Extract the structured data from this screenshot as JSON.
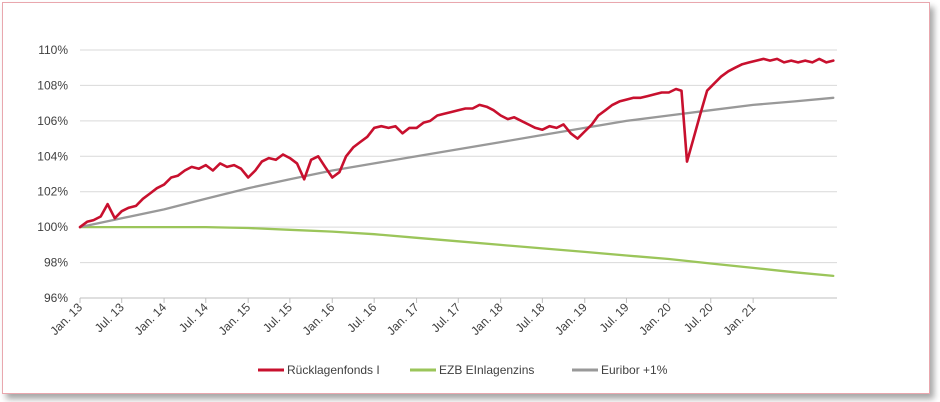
{
  "chart_data": {
    "type": "line",
    "y_unit": "%",
    "ylim": [
      96,
      110
    ],
    "y_ticks": [
      "110%",
      "108%",
      "106%",
      "104%",
      "102%",
      "100%",
      "98%",
      "96%"
    ],
    "x_range": [
      "2013-01-01",
      "2021-12-31"
    ],
    "x_ticks": [
      {
        "date": "2013-01-01",
        "label": "Jan. 13"
      },
      {
        "date": "2013-07-01",
        "label": "Jul. 13"
      },
      {
        "date": "2014-01-01",
        "label": "Jan. 14"
      },
      {
        "date": "2014-07-01",
        "label": "Jul. 14"
      },
      {
        "date": "2015-01-01",
        "label": "Jan. 15"
      },
      {
        "date": "2015-07-01",
        "label": "Jul. 15"
      },
      {
        "date": "2016-01-01",
        "label": "Jan. 16"
      },
      {
        "date": "2016-07-01",
        "label": "Jul. 16"
      },
      {
        "date": "2017-01-01",
        "label": "Jan. 17"
      },
      {
        "date": "2017-07-01",
        "label": "Jul. 17"
      },
      {
        "date": "2018-01-01",
        "label": "Jan. 18"
      },
      {
        "date": "2018-07-01",
        "label": "Jul. 18"
      },
      {
        "date": "2019-01-01",
        "label": "Jan. 19"
      },
      {
        "date": "2019-07-01",
        "label": "Jul. 19"
      },
      {
        "date": "2020-01-01",
        "label": "Jan. 20"
      },
      {
        "date": "2020-07-01",
        "label": "Jul. 20"
      },
      {
        "date": "2021-01-01",
        "label": "Jan. 21"
      }
    ],
    "grid": "horizontal",
    "legend_position": "bottom",
    "series": [
      {
        "name": "Rücklagenfonds I",
        "color": "#c8102e",
        "points": [
          [
            "2013-01-01",
            100.0
          ],
          [
            "2013-02-01",
            100.3
          ],
          [
            "2013-03-01",
            100.4
          ],
          [
            "2013-04-01",
            100.6
          ],
          [
            "2013-05-01",
            101.3
          ],
          [
            "2013-06-01",
            100.5
          ],
          [
            "2013-07-01",
            100.9
          ],
          [
            "2013-08-01",
            101.1
          ],
          [
            "2013-09-01",
            101.2
          ],
          [
            "2013-10-01",
            101.6
          ],
          [
            "2013-11-01",
            101.9
          ],
          [
            "2013-12-01",
            102.2
          ],
          [
            "2014-01-01",
            102.4
          ],
          [
            "2014-02-01",
            102.8
          ],
          [
            "2014-03-01",
            102.9
          ],
          [
            "2014-04-01",
            103.2
          ],
          [
            "2014-05-01",
            103.4
          ],
          [
            "2014-06-01",
            103.3
          ],
          [
            "2014-07-01",
            103.5
          ],
          [
            "2014-08-01",
            103.2
          ],
          [
            "2014-09-01",
            103.6
          ],
          [
            "2014-10-01",
            103.4
          ],
          [
            "2014-11-01",
            103.5
          ],
          [
            "2014-12-01",
            103.3
          ],
          [
            "2015-01-01",
            102.8
          ],
          [
            "2015-02-01",
            103.2
          ],
          [
            "2015-03-01",
            103.7
          ],
          [
            "2015-04-01",
            103.9
          ],
          [
            "2015-05-01",
            103.8
          ],
          [
            "2015-06-01",
            104.1
          ],
          [
            "2015-07-01",
            103.9
          ],
          [
            "2015-08-01",
            103.6
          ],
          [
            "2015-09-01",
            102.7
          ],
          [
            "2015-10-01",
            103.8
          ],
          [
            "2015-11-01",
            104.0
          ],
          [
            "2015-12-01",
            103.4
          ],
          [
            "2016-01-01",
            102.8
          ],
          [
            "2016-02-01",
            103.1
          ],
          [
            "2016-03-01",
            104.0
          ],
          [
            "2016-04-01",
            104.5
          ],
          [
            "2016-05-01",
            104.8
          ],
          [
            "2016-06-01",
            105.1
          ],
          [
            "2016-07-01",
            105.6
          ],
          [
            "2016-08-01",
            105.7
          ],
          [
            "2016-09-01",
            105.6
          ],
          [
            "2016-10-01",
            105.7
          ],
          [
            "2016-11-01",
            105.3
          ],
          [
            "2016-12-01",
            105.6
          ],
          [
            "2017-01-01",
            105.6
          ],
          [
            "2017-02-01",
            105.9
          ],
          [
            "2017-03-01",
            106.0
          ],
          [
            "2017-04-01",
            106.3
          ],
          [
            "2017-05-01",
            106.4
          ],
          [
            "2017-06-01",
            106.5
          ],
          [
            "2017-07-01",
            106.6
          ],
          [
            "2017-08-01",
            106.7
          ],
          [
            "2017-09-01",
            106.7
          ],
          [
            "2017-10-01",
            106.9
          ],
          [
            "2017-11-01",
            106.8
          ],
          [
            "2017-12-01",
            106.6
          ],
          [
            "2018-01-01",
            106.3
          ],
          [
            "2018-02-01",
            106.1
          ],
          [
            "2018-03-01",
            106.2
          ],
          [
            "2018-04-01",
            106.0
          ],
          [
            "2018-05-01",
            105.8
          ],
          [
            "2018-06-01",
            105.6
          ],
          [
            "2018-07-01",
            105.5
          ],
          [
            "2018-08-01",
            105.7
          ],
          [
            "2018-09-01",
            105.6
          ],
          [
            "2018-10-01",
            105.8
          ],
          [
            "2018-11-01",
            105.3
          ],
          [
            "2018-12-01",
            105.0
          ],
          [
            "2019-01-01",
            105.4
          ],
          [
            "2019-02-01",
            105.8
          ],
          [
            "2019-03-01",
            106.3
          ],
          [
            "2019-04-01",
            106.6
          ],
          [
            "2019-05-01",
            106.9
          ],
          [
            "2019-06-01",
            107.1
          ],
          [
            "2019-07-01",
            107.2
          ],
          [
            "2019-08-01",
            107.3
          ],
          [
            "2019-09-01",
            107.3
          ],
          [
            "2019-10-01",
            107.4
          ],
          [
            "2019-11-01",
            107.5
          ],
          [
            "2019-12-01",
            107.6
          ],
          [
            "2020-01-01",
            107.6
          ],
          [
            "2020-02-01",
            107.8
          ],
          [
            "2020-02-25",
            107.7
          ],
          [
            "2020-03-20",
            103.7
          ],
          [
            "2020-04-15",
            104.9
          ],
          [
            "2020-05-15",
            106.3
          ],
          [
            "2020-06-15",
            107.7
          ],
          [
            "2020-07-15",
            108.1
          ],
          [
            "2020-08-15",
            108.5
          ],
          [
            "2020-09-15",
            108.8
          ],
          [
            "2020-10-15",
            109.0
          ],
          [
            "2020-11-15",
            109.2
          ],
          [
            "2020-12-15",
            109.3
          ],
          [
            "2021-01-15",
            109.4
          ],
          [
            "2021-02-15",
            109.5
          ],
          [
            "2021-03-15",
            109.4
          ],
          [
            "2021-04-15",
            109.5
          ],
          [
            "2021-05-15",
            109.3
          ],
          [
            "2021-06-15",
            109.4
          ],
          [
            "2021-07-15",
            109.3
          ],
          [
            "2021-08-15",
            109.4
          ],
          [
            "2021-09-15",
            109.3
          ],
          [
            "2021-10-15",
            109.5
          ],
          [
            "2021-11-15",
            109.3
          ],
          [
            "2021-12-15",
            109.4
          ]
        ]
      },
      {
        "name": "EZB EInlagenzins",
        "color": "#9bc55a",
        "points": [
          [
            "2013-01-01",
            100.0
          ],
          [
            "2013-07-01",
            100.0
          ],
          [
            "2014-01-01",
            100.0
          ],
          [
            "2014-07-01",
            100.0
          ],
          [
            "2015-01-01",
            99.95
          ],
          [
            "2015-07-01",
            99.85
          ],
          [
            "2016-01-01",
            99.75
          ],
          [
            "2016-07-01",
            99.6
          ],
          [
            "2017-01-01",
            99.4
          ],
          [
            "2017-07-01",
            99.2
          ],
          [
            "2018-01-01",
            99.0
          ],
          [
            "2018-07-01",
            98.8
          ],
          [
            "2019-01-01",
            98.6
          ],
          [
            "2019-07-01",
            98.4
          ],
          [
            "2020-01-01",
            98.2
          ],
          [
            "2020-07-01",
            97.95
          ],
          [
            "2021-01-01",
            97.7
          ],
          [
            "2021-07-01",
            97.45
          ],
          [
            "2021-12-15",
            97.25
          ]
        ]
      },
      {
        "name": "Euribor +1%",
        "color": "#999999",
        "points": [
          [
            "2013-01-01",
            100.0
          ],
          [
            "2013-07-01",
            100.5
          ],
          [
            "2014-01-01",
            101.0
          ],
          [
            "2014-07-01",
            101.6
          ],
          [
            "2015-01-01",
            102.2
          ],
          [
            "2015-07-01",
            102.7
          ],
          [
            "2016-01-01",
            103.2
          ],
          [
            "2016-07-01",
            103.6
          ],
          [
            "2017-01-01",
            104.0
          ],
          [
            "2017-07-01",
            104.4
          ],
          [
            "2018-01-01",
            104.8
          ],
          [
            "2018-07-01",
            105.2
          ],
          [
            "2019-01-01",
            105.6
          ],
          [
            "2019-07-01",
            106.0
          ],
          [
            "2020-01-01",
            106.3
          ],
          [
            "2020-07-01",
            106.6
          ],
          [
            "2021-01-01",
            106.9
          ],
          [
            "2021-07-01",
            107.1
          ],
          [
            "2021-12-15",
            107.3
          ]
        ]
      }
    ]
  }
}
